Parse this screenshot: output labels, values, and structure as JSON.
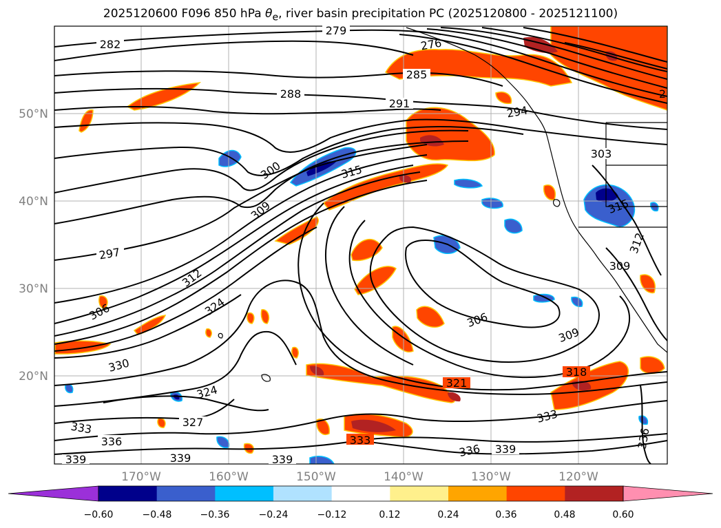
{
  "title_prefix": "2025120600 F096 850 hPa ",
  "title_theta": "θ",
  "title_sub": "e",
  "title_suffix": ", river basin precipitation PC (2025120800 - 2025121100)",
  "lat_labels": [
    "50°N",
    "40°N",
    "30°N",
    "20°N"
  ],
  "lon_labels": [
    "170°W",
    "160°W",
    "150°W",
    "140°W",
    "130°W",
    "120°W"
  ],
  "colorbar": {
    "colors": [
      "#9b30d9",
      "#00008b",
      "#3a5fcd",
      "#00bfff",
      "#b0e2ff",
      "#ffffff",
      "#fff08c",
      "#ffa500",
      "#ff4500",
      "#b22222",
      "#ff8fb0"
    ],
    "tick_labels": [
      "−0.60",
      "−0.48",
      "−0.36",
      "−0.24",
      "−0.12",
      "0.12",
      "0.24",
      "0.36",
      "0.48",
      "0.60"
    ]
  },
  "contour_labels": [
    "279",
    "282",
    "285",
    "288",
    "291",
    "294",
    "297",
    "300",
    "303",
    "306",
    "306",
    "309",
    "309",
    "309",
    "312",
    "312",
    "315",
    "315",
    "318",
    "321",
    "324",
    "324",
    "327",
    "330",
    "333",
    "333",
    "333",
    "336",
    "336",
    "336",
    "339",
    "339",
    "339",
    "339",
    "276",
    "2"
  ],
  "colors": {
    "contour": "#000000",
    "grid": "#b0b0b0",
    "coast": "#000000"
  }
}
